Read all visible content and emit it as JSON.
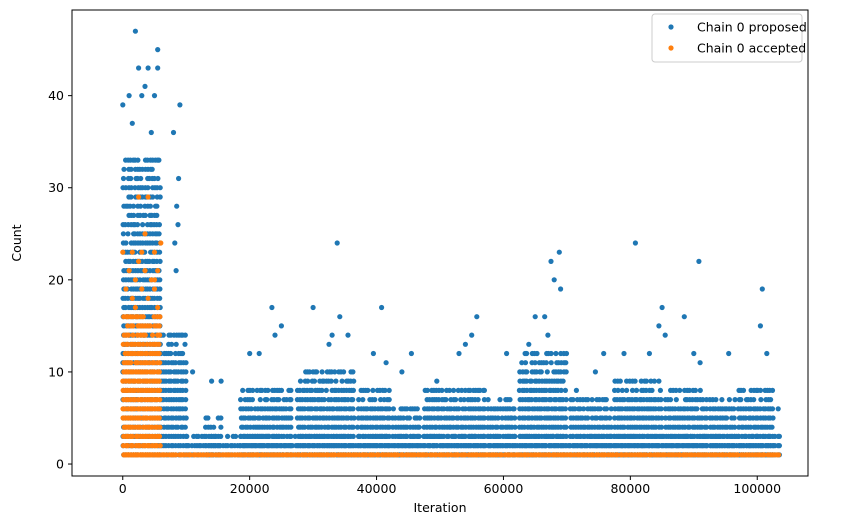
{
  "chart_data": {
    "type": "scatter",
    "title": "",
    "xlabel": "Iteration",
    "ylabel": "Count",
    "xlim": [
      -8000,
      108000
    ],
    "ylim": [
      -1.3,
      49.3
    ],
    "x_ticks": [
      0,
      20000,
      40000,
      60000,
      80000,
      100000
    ],
    "y_ticks": [
      0,
      10,
      20,
      30,
      40
    ],
    "grid": false,
    "legend_position": "top-right",
    "colors": {
      "proposed": "#1f77b4",
      "accepted": "#ff7f0e"
    },
    "series": [
      {
        "name": "Chain 0 proposed",
        "color": "#1f77b4",
        "bands": [
          {
            "x": [
              0,
              6000
            ],
            "y": [
              1,
              33
            ]
          },
          {
            "x": [
              6000,
              10000
            ],
            "y": [
              1,
              14
            ]
          },
          {
            "x": [
              10000,
              103500
            ],
            "y": [
              1,
              3
            ]
          },
          {
            "x": [
              13000,
              15500
            ],
            "y": [
              1,
              5
            ]
          },
          {
            "x": [
              18500,
              26500
            ],
            "y": [
              1,
              8
            ]
          },
          {
            "x": [
              27500,
              36500
            ],
            "y": [
              1,
              10
            ]
          },
          {
            "x": [
              37000,
              42000
            ],
            "y": [
              1,
              8
            ]
          },
          {
            "x": [
              42500,
              47000
            ],
            "y": [
              1,
              6
            ]
          },
          {
            "x": [
              47500,
              57000
            ],
            "y": [
              1,
              8
            ]
          },
          {
            "x": [
              57500,
              62000
            ],
            "y": [
              1,
              7
            ]
          },
          {
            "x": [
              62500,
              70000
            ],
            "y": [
              1,
              12
            ]
          },
          {
            "x": [
              70500,
              77000
            ],
            "y": [
              1,
              7
            ]
          },
          {
            "x": [
              77500,
              85000
            ],
            "y": [
              1,
              9
            ]
          },
          {
            "x": [
              85500,
              92000
            ],
            "y": [
              1,
              8
            ]
          },
          {
            "x": [
              92500,
              96500
            ],
            "y": [
              1,
              7
            ]
          },
          {
            "x": [
              97000,
              102500
            ],
            "y": [
              1,
              8
            ]
          }
        ],
        "outliers": [
          [
            2000,
            47
          ],
          [
            5500,
            45
          ],
          [
            2500,
            43
          ],
          [
            4000,
            43
          ],
          [
            5500,
            43
          ],
          [
            1000,
            40
          ],
          [
            3000,
            40
          ],
          [
            5000,
            40
          ],
          [
            3500,
            41
          ],
          [
            0,
            39
          ],
          [
            9000,
            39
          ],
          [
            8000,
            36
          ],
          [
            1500,
            37
          ],
          [
            4500,
            36
          ],
          [
            8800,
            31
          ],
          [
            8500,
            28
          ],
          [
            8700,
            26
          ],
          [
            8200,
            24
          ],
          [
            8400,
            21
          ],
          [
            33800,
            24
          ],
          [
            23500,
            17
          ],
          [
            25000,
            15
          ],
          [
            24000,
            14
          ],
          [
            20000,
            12
          ],
          [
            21500,
            12
          ],
          [
            30000,
            17
          ],
          [
            34200,
            16
          ],
          [
            35500,
            14
          ],
          [
            32500,
            13
          ],
          [
            33000,
            14
          ],
          [
            40800,
            17
          ],
          [
            39500,
            12
          ],
          [
            41500,
            11
          ],
          [
            45500,
            12
          ],
          [
            44000,
            10
          ],
          [
            55800,
            16
          ],
          [
            55000,
            14
          ],
          [
            54000,
            13
          ],
          [
            53000,
            12
          ],
          [
            60500,
            12
          ],
          [
            68800,
            23
          ],
          [
            67500,
            22
          ],
          [
            68000,
            20
          ],
          [
            69000,
            19
          ],
          [
            66500,
            16
          ],
          [
            65000,
            16
          ],
          [
            64000,
            13
          ],
          [
            67000,
            14
          ],
          [
            80800,
            24
          ],
          [
            85000,
            17
          ],
          [
            84500,
            15
          ],
          [
            85500,
            14
          ],
          [
            83000,
            12
          ],
          [
            79000,
            12
          ],
          [
            88500,
            16
          ],
          [
            90800,
            22
          ],
          [
            90000,
            12
          ],
          [
            91000,
            11
          ],
          [
            95500,
            12
          ],
          [
            100800,
            19
          ],
          [
            100500,
            15
          ],
          [
            101500,
            12
          ],
          [
            103300,
            6
          ],
          [
            75800,
            12
          ],
          [
            74500,
            10
          ],
          [
            49500,
            9
          ],
          [
            14000,
            9
          ],
          [
            15500,
            9
          ],
          [
            11000,
            10
          ],
          [
            71500,
            8
          ]
        ]
      },
      {
        "name": "Chain 0 accepted",
        "color": "#ff7f0e",
        "bands": [
          {
            "x": [
              0,
              6000
            ],
            "y": [
              1,
              16
            ]
          },
          {
            "x": [
              0,
              103500
            ],
            "y": [
              1,
              1
            ]
          }
        ],
        "outliers": [
          [
            4000,
            29
          ],
          [
            2500,
            29
          ],
          [
            3500,
            25
          ],
          [
            1500,
            23
          ],
          [
            3000,
            23
          ],
          [
            5000,
            23
          ],
          [
            0,
            23
          ],
          [
            2500,
            22
          ],
          [
            1000,
            21
          ],
          [
            3500,
            21
          ],
          [
            5500,
            21
          ],
          [
            2000,
            20
          ],
          [
            4500,
            20
          ],
          [
            500,
            19
          ],
          [
            3000,
            19
          ],
          [
            5000,
            19
          ],
          [
            1500,
            18
          ],
          [
            4000,
            18
          ],
          [
            2000,
            17
          ],
          [
            5500,
            17
          ],
          [
            6000,
            24
          ],
          [
            5000,
            20
          ]
        ]
      }
    ]
  }
}
